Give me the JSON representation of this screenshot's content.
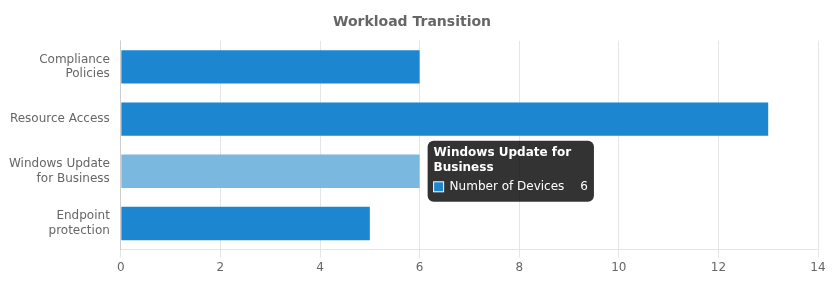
{
  "chart_data": {
    "type": "bar",
    "orientation": "horizontal",
    "title": "Workload Transition",
    "categories": [
      "Endpoint\nprotection",
      "Windows Update\nfor Business",
      "Resource Access",
      "Compliance\nPolicies"
    ],
    "values": [
      5,
      6,
      13,
      6
    ],
    "colors": [
      "#1c86d1",
      "#7ab8e0",
      "#1c86d1",
      "#1c86d1"
    ],
    "xlim": [
      0,
      14
    ],
    "xticks": [
      0,
      2,
      4,
      6,
      8,
      10,
      12
    ],
    "grid": true,
    "annotations": [
      {
        "category": "Windows Update\nfor Business",
        "title": [
          "Windows Update for",
          "Business"
        ],
        "label": "Number of Devices",
        "value": 6,
        "color": "#1c86d1"
      }
    ]
  }
}
